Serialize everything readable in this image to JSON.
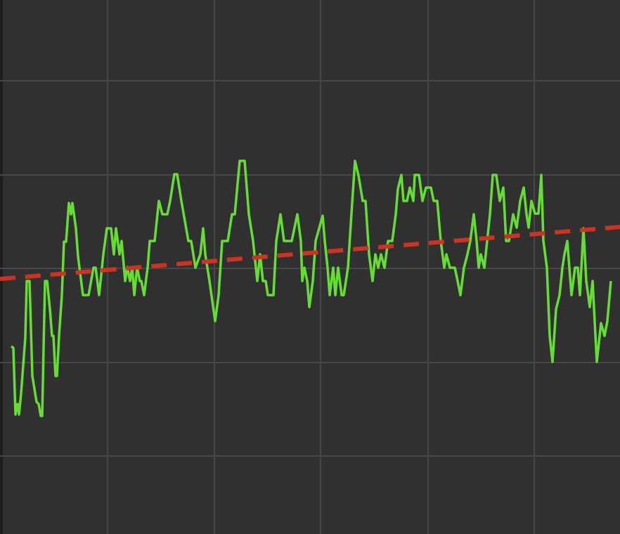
{
  "chart_data": {
    "type": "line",
    "background": "#303030",
    "grid": true,
    "grid_color": "#474747",
    "xlim": [
      0,
      882
    ],
    "xticks": [
      153,
      305,
      456,
      609,
      760
    ],
    "ylim": [
      0,
      760
    ],
    "yticks": [
      111,
      244,
      378,
      511,
      645
    ],
    "series": [
      {
        "color": "#66dd33",
        "linestyle": "solid",
        "x": [
          16,
          19,
          22,
          25,
          27,
          30,
          36,
          38,
          42,
          46,
          52,
          55,
          58,
          60,
          64,
          67,
          71,
          74,
          76,
          79,
          81,
          84,
          88,
          91,
          94,
          98,
          101,
          103,
          108,
          111,
          118,
          126,
          133,
          136,
          141,
          147,
          152,
          158,
          162,
          165,
          170,
          173,
          178,
          181,
          185,
          188,
          191,
          195,
          199,
          201,
          205,
          210,
          213,
          220,
          226,
          231,
          238,
          242,
          248,
          252,
          258,
          268,
          272,
          278,
          285,
          289,
          292,
          298,
          306,
          311,
          316,
          324,
          330,
          334,
          341,
          348,
          354,
          360,
          366,
          370,
          374,
          378,
          381,
          389,
          393,
          399,
          404,
          415,
          423,
          428,
          430,
          433,
          437,
          440,
          445,
          449,
          454,
          459,
          462,
          466,
          469,
          474,
          477,
          481,
          486,
          489,
          495,
          500,
          505,
          510,
          516,
          520,
          525,
          530,
          534,
          538,
          542,
          547,
          552,
          558,
          563,
          566,
          571,
          574,
          579,
          583,
          588,
          590,
          596,
          601,
          606,
          613,
          617,
          622,
          627,
          632,
          635,
          640,
          647,
          651,
          655,
          660,
          665,
          669,
          674,
          678,
          681,
          684,
          689,
          693,
          697,
          701,
          706,
          711,
          716,
          720,
          724,
          730,
          735,
          740,
          745,
          749,
          752,
          756,
          761,
          766,
          770,
          773,
          778,
          782,
          786,
          791,
          796,
          800,
          803,
          807,
          813,
          818,
          822,
          825,
          830,
          834,
          839,
          843,
          849,
          855,
          860,
          864,
          869
        ],
        "values": [
          267,
          265,
          170,
          185,
          170,
          200,
          280,
          360,
          360,
          225,
          188,
          185,
          168,
          168,
          360,
          360,
          320,
          282,
          282,
          225,
          225,
          282,
          340,
          416,
          416,
          471,
          455,
          471,
          435,
          395,
          340,
          340,
          379,
          379,
          340,
          398,
          435,
          435,
          398,
          435,
          398,
          417,
          360,
          380,
          360,
          379,
          340,
          379,
          360,
          360,
          340,
          379,
          417,
          417,
          474,
          455,
          455,
          474,
          512,
          512,
          474,
          417,
          417,
          379,
          398,
          435,
          398,
          360,
          303,
          340,
          417,
          417,
          455,
          455,
          531,
          531,
          455,
          417,
          360,
          398,
          360,
          360,
          340,
          340,
          417,
          455,
          417,
          417,
          455,
          417,
          360,
          379,
          360,
          323,
          360,
          417,
          435,
          453,
          417,
          379,
          340,
          379,
          340,
          379,
          340,
          340,
          379,
          456,
          531,
          510,
          474,
          474,
          398,
          360,
          398,
          379,
          398,
          379,
          417,
          417,
          455,
          491,
          511,
          474,
          474,
          493,
          474,
          511,
          511,
          474,
          493,
          493,
          474,
          474,
          417,
          379,
          398,
          379,
          379,
          360,
          340,
          379,
          398,
          417,
          455,
          417,
          379,
          398,
          379,
          417,
          455,
          511,
          511,
          474,
          493,
          417,
          417,
          455,
          436,
          474,
          493,
          455,
          436,
          474,
          456,
          456,
          511,
          417,
          379,
          282,
          245,
          320,
          340,
          379,
          398,
          417,
          340,
          379,
          379,
          340,
          435,
          360,
          323,
          360,
          245,
          300,
          282,
          303,
          360
        ]
      },
      {
        "color": "#cc3322",
        "linestyle": "dashed",
        "x": [
          0,
          882
        ],
        "values": [
          363,
          437
        ]
      }
    ]
  }
}
